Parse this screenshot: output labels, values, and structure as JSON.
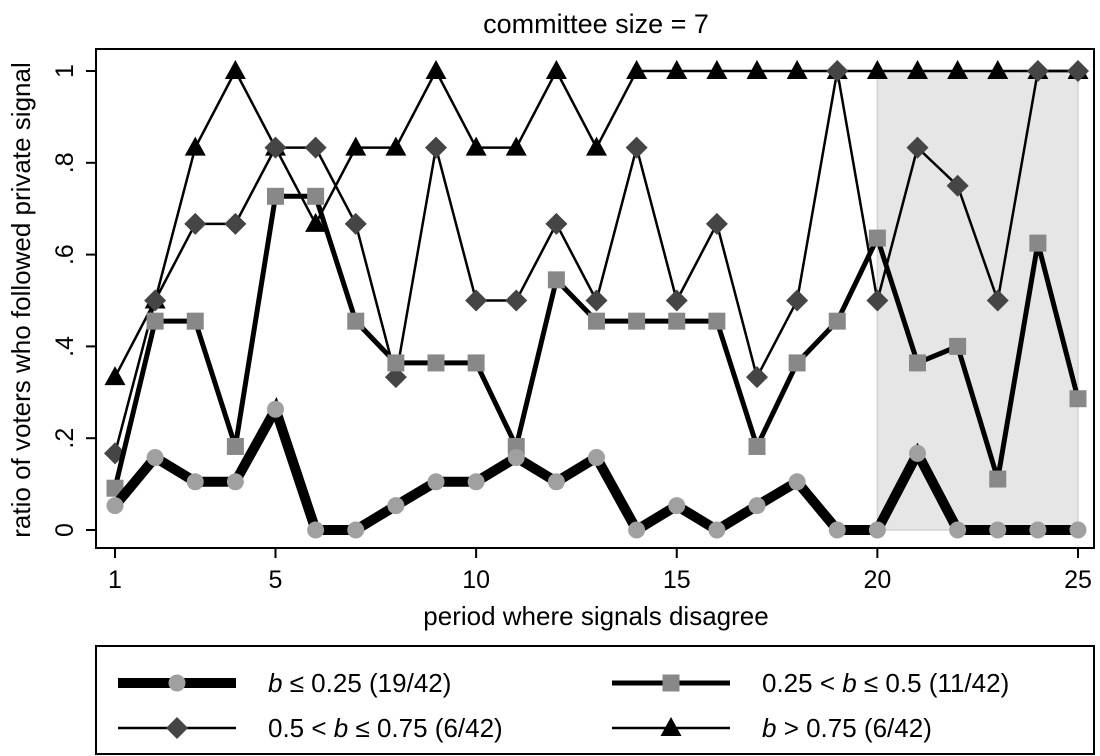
{
  "chart_data": {
    "type": "line",
    "title": "committee size = 7",
    "xlabel": "period where signals disagree",
    "ylabel": "ratio of voters who followed private signal",
    "xlim": [
      1,
      25
    ],
    "ylim": [
      0,
      1
    ],
    "xticks": [
      1,
      5,
      10,
      15,
      20,
      25
    ],
    "yticks": [
      0,
      0.2,
      0.4,
      0.6,
      0.8,
      1
    ],
    "xtick_labels": [
      "1",
      "5",
      "10",
      "15",
      "20",
      "25"
    ],
    "ytick_labels": [
      "0",
      ".2",
      ".4",
      ".6",
      ".8",
      "1"
    ],
    "grid": false,
    "shaded_region": {
      "x": [
        20,
        25
      ],
      "color": "#e6e6e6"
    },
    "legend_position": "bottom",
    "x": [
      1,
      2,
      3,
      4,
      5,
      6,
      7,
      8,
      9,
      10,
      11,
      12,
      13,
      14,
      15,
      16,
      17,
      18,
      19,
      20,
      21,
      22,
      23,
      24,
      25
    ],
    "series": [
      {
        "name": "b ≤ 0.25 (19/42)",
        "legend": {
          "pre": "",
          "b": "b",
          "post": " ≤ 0.25 (19/42)"
        },
        "color": "#000000",
        "marker_color": "#a0a0a0",
        "marker": "circle",
        "stroke": "thick",
        "values": [
          0.053,
          0.158,
          0.105,
          0.105,
          0.263,
          0,
          0,
          0.053,
          0.105,
          0.105,
          0.158,
          0.105,
          0.158,
          0,
          0.053,
          0,
          0.053,
          0.105,
          0,
          0,
          0.167,
          0,
          0,
          0,
          0
        ]
      },
      {
        "name": "0.25 < b ≤ 0.5 (11/42)",
        "legend": {
          "pre": "0.25 < ",
          "b": "b",
          "post": " ≤ 0.5 (11/42)"
        },
        "color": "#000000",
        "marker_color": "#888888",
        "marker": "square",
        "stroke": "medium",
        "values": [
          0.091,
          0.455,
          0.455,
          0.182,
          0.727,
          0.727,
          0.455,
          0.364,
          0.364,
          0.364,
          0.182,
          0.545,
          0.455,
          0.455,
          0.455,
          0.455,
          0.182,
          0.364,
          0.455,
          0.636,
          0.364,
          0.4,
          0.111,
          0.625,
          0.286
        ]
      },
      {
        "name": "0.5 < b ≤ 0.75 (6/42)",
        "legend": {
          "pre": "0.5 < ",
          "b": "b",
          "post": " ≤ 0.75 (6/42)"
        },
        "color": "#000000",
        "marker_color": "#454545",
        "marker": "diamond",
        "stroke": "thin",
        "values": [
          0.167,
          0.5,
          0.667,
          0.667,
          0.833,
          0.833,
          0.667,
          0.333,
          0.833,
          0.5,
          0.5,
          0.667,
          0.5,
          0.833,
          0.5,
          0.667,
          0.333,
          0.5,
          1,
          0.5,
          0.833,
          0.75,
          0.5,
          1,
          1
        ]
      },
      {
        "name": "b > 0.75 (6/42)",
        "legend": {
          "pre": "",
          "b": "b",
          "post": " > 0.75 (6/42)"
        },
        "color": "#000000",
        "marker_color": "#000000",
        "marker": "triangle",
        "stroke": "thin",
        "values": [
          0.333,
          0.5,
          0.833,
          1,
          0.833,
          0.667,
          0.833,
          0.833,
          1,
          0.833,
          0.833,
          1,
          0.833,
          1,
          1,
          1,
          1,
          1,
          1,
          1,
          1,
          1,
          1,
          1,
          1
        ]
      }
    ]
  }
}
